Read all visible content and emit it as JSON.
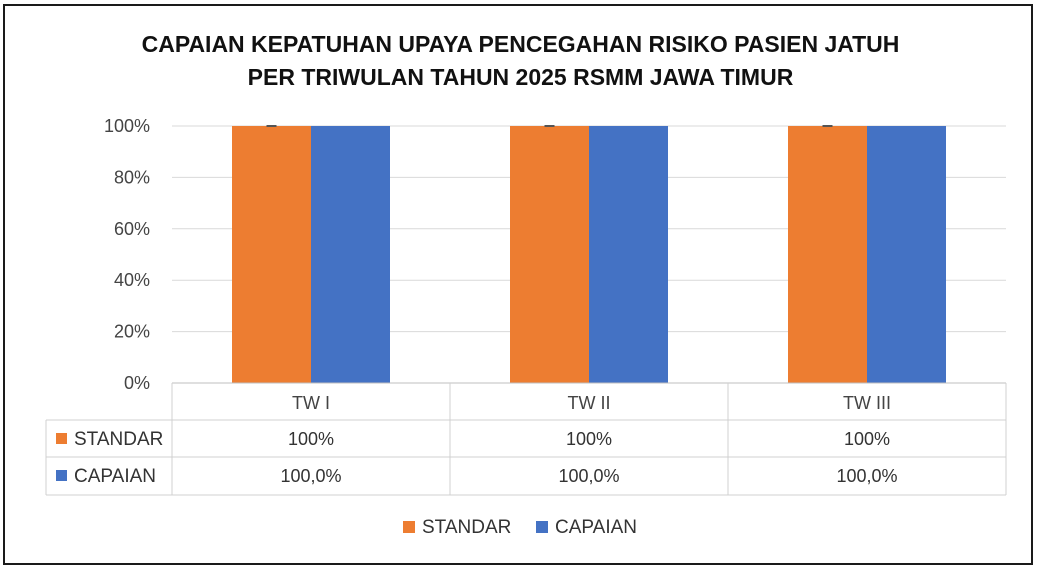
{
  "chart_data": {
    "type": "bar",
    "title": [
      "CAPAIAN KEPATUHAN UPAYA PENCEGAHAN RISIKO PASIEN JATUH",
      "PER TRIWULAN TAHUN 2025 RSMM JAWA TIMUR"
    ],
    "categories": [
      "TW I",
      "TW II",
      "TW III"
    ],
    "ylim": [
      0,
      100
    ],
    "y_ticks": [
      "0%",
      "20%",
      "40%",
      "60%",
      "80%",
      "100%"
    ],
    "grid": true,
    "legend_position": "bottom",
    "series": [
      {
        "name": "STANDAR",
        "color": "#ED7D31",
        "values": [
          100,
          100,
          100
        ],
        "labels": [
          "100%",
          "100%",
          "100%"
        ]
      },
      {
        "name": "CAPAIAN",
        "color": "#4472C4",
        "values": [
          100,
          100,
          100
        ],
        "labels": [
          "100,0%",
          "100,0%",
          "100,0%"
        ]
      }
    ]
  }
}
